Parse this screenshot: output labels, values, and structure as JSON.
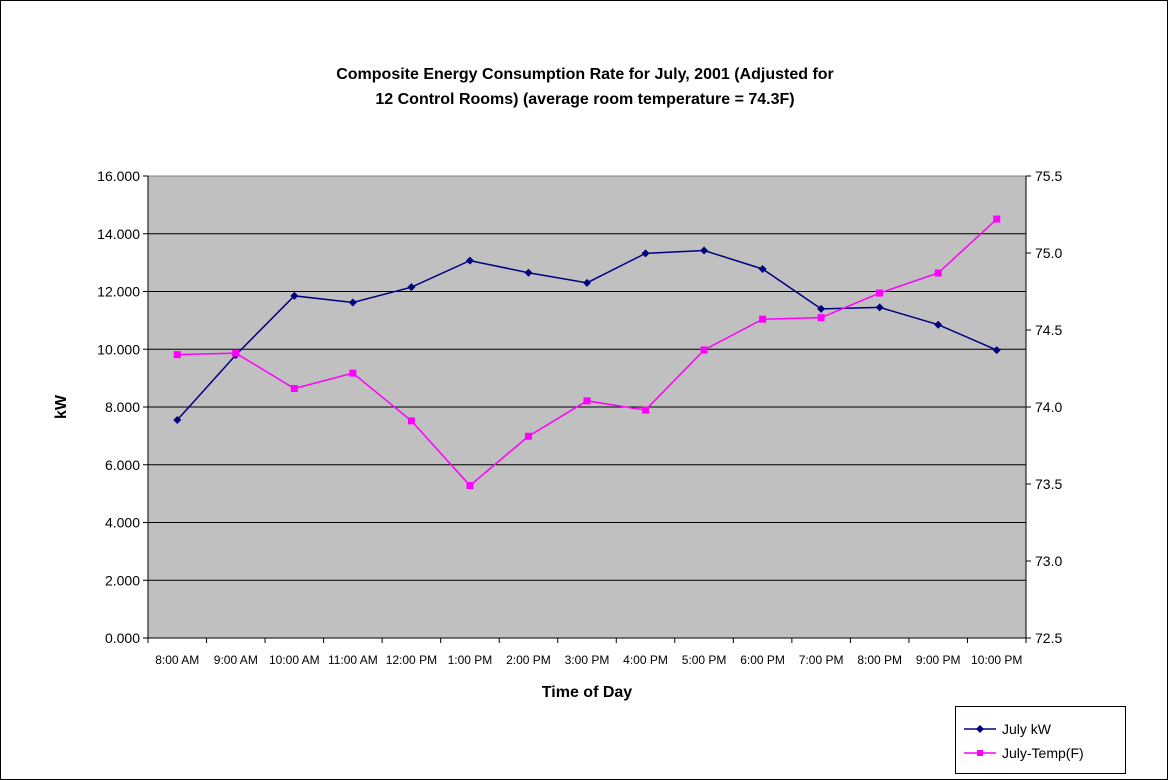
{
  "chart_data": {
    "type": "line",
    "title_lines": [
      "Composite Energy Consumption Rate for July, 2001 (Adjusted for",
      "12 Control Rooms) (average room temperature = 74.3F)"
    ],
    "xlabel": "Time of Day",
    "ylabel": "kW",
    "y2label": "",
    "categories": [
      "8:00 AM",
      "9:00 AM",
      "10:00 AM",
      "11:00 AM",
      "12:00 PM",
      "1:00 PM",
      "2:00 PM",
      "3:00 PM",
      "4:00 PM",
      "5:00 PM",
      "6:00 PM",
      "7:00 PM",
      "8:00 PM",
      "9:00 PM",
      "10:00 PM"
    ],
    "ylim": [
      0,
      16
    ],
    "yticks": [
      "0.000",
      "2.000",
      "4.000",
      "6.000",
      "8.000",
      "10.000",
      "12.000",
      "14.000",
      "16.000"
    ],
    "y2lim": [
      72.5,
      75.5
    ],
    "y2ticks": [
      "72.5",
      "73.0",
      "73.5",
      "74.0",
      "74.5",
      "75.0",
      "75.5"
    ],
    "grid": true,
    "plot_background": "#c0c0c0",
    "legend_position": "bottom-right",
    "series": [
      {
        "name": "July kW",
        "axis": "left",
        "color": "#000080",
        "marker": "diamond",
        "values": [
          7.55,
          9.8,
          11.85,
          11.62,
          12.15,
          13.07,
          12.65,
          12.3,
          13.32,
          13.42,
          12.78,
          11.4,
          11.45,
          10.85,
          9.97
        ]
      },
      {
        "name": "July-Temp(F)",
        "axis": "right",
        "color": "#ff00ff",
        "marker": "square",
        "values": [
          74.34,
          74.35,
          74.12,
          74.22,
          73.91,
          73.49,
          73.81,
          74.04,
          73.98,
          74.37,
          74.57,
          74.58,
          74.74,
          74.87,
          75.22
        ]
      }
    ]
  }
}
